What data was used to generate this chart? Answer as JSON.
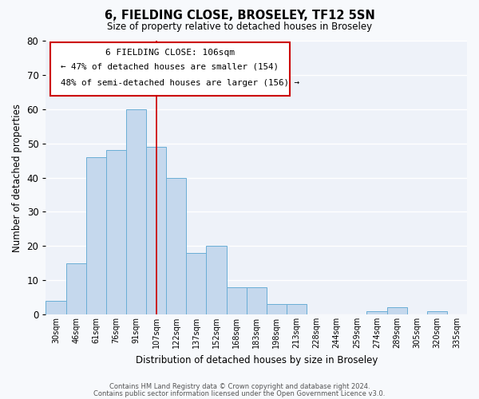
{
  "title": "6, FIELDING CLOSE, BROSELEY, TF12 5SN",
  "subtitle": "Size of property relative to detached houses in Broseley",
  "xlabel": "Distribution of detached houses by size in Broseley",
  "ylabel": "Number of detached properties",
  "categories": [
    "30sqm",
    "46sqm",
    "61sqm",
    "76sqm",
    "91sqm",
    "107sqm",
    "122sqm",
    "137sqm",
    "152sqm",
    "168sqm",
    "183sqm",
    "198sqm",
    "213sqm",
    "228sqm",
    "244sqm",
    "259sqm",
    "274sqm",
    "289sqm",
    "305sqm",
    "320sqm",
    "335sqm"
  ],
  "values": [
    4,
    15,
    46,
    48,
    60,
    49,
    40,
    18,
    20,
    8,
    8,
    3,
    3,
    0,
    0,
    0,
    1,
    2,
    0,
    1,
    0
  ],
  "bar_color": "#c5d8ed",
  "bar_edge_color": "#6aaed6",
  "fig_background_color": "#f7f9fc",
  "axes_background_color": "#eef2f9",
  "grid_color": "#ffffff",
  "vline_color": "#cc0000",
  "vline_x_index": 5,
  "annotation_title": "6 FIELDING CLOSE: 106sqm",
  "annotation_line1": "← 47% of detached houses are smaller (154)",
  "annotation_line2": "48% of semi-detached houses are larger (156) →",
  "annotation_box_facecolor": "#ffffff",
  "annotation_box_edgecolor": "#cc0000",
  "ylim": [
    0,
    80
  ],
  "yticks": [
    0,
    10,
    20,
    30,
    40,
    50,
    60,
    70,
    80
  ],
  "footer1": "Contains HM Land Registry data © Crown copyright and database right 2024.",
  "footer2": "Contains public sector information licensed under the Open Government Licence v3.0."
}
